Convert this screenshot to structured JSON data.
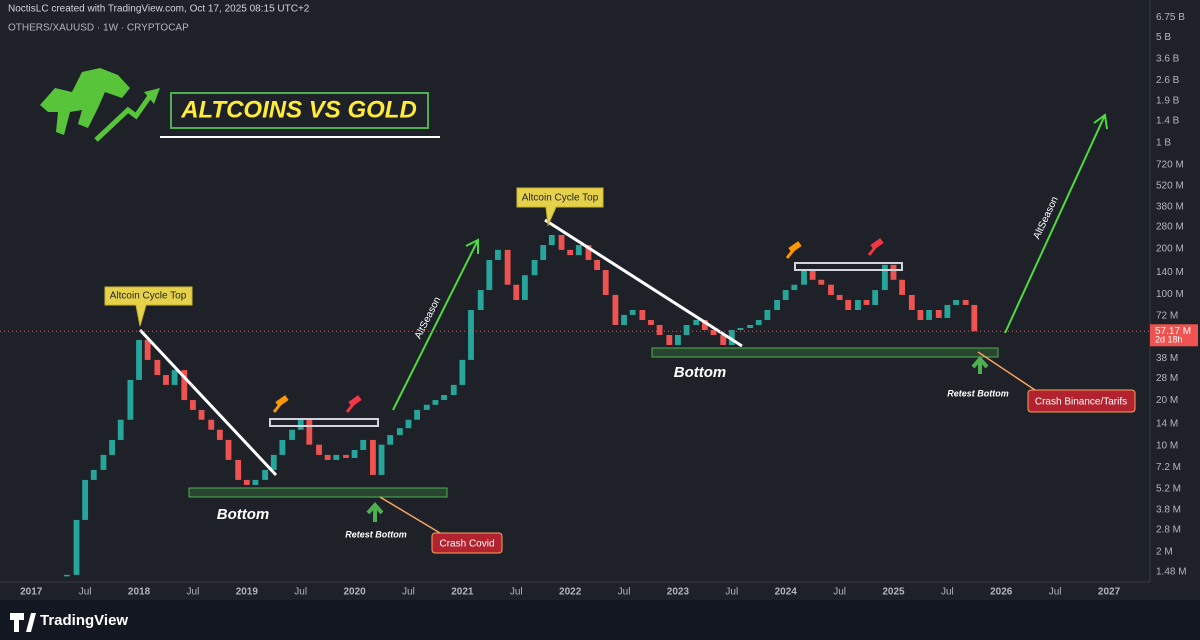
{
  "header": {
    "credit": "NoctisLC created with TradingView.com, Oct 17, 2025 08:15 UTC+2",
    "symbol": "OTHERS/XAUUSD · 1W · CRYPTOCAP"
  },
  "footer": {
    "brand": "TradingView"
  },
  "chart_data": {
    "type": "candlestick",
    "title": "ALTCOINS VS GOLD",
    "log_scale": true,
    "grid": false,
    "up_color": "#26a69a",
    "down_color": "#ef5350",
    "x": [
      2017.33,
      2017.42,
      2017.5,
      2017.58,
      2017.67,
      2017.75,
      2017.83,
      2017.92,
      2018,
      2018.08,
      2018.17,
      2018.25,
      2018.33,
      2018.42,
      2018.5,
      2018.58,
      2018.67,
      2018.75,
      2018.83,
      2018.92,
      2019,
      2019.08,
      2019.17,
      2019.25,
      2019.33,
      2019.42,
      2019.5,
      2019.58,
      2019.67,
      2019.75,
      2019.83,
      2019.92,
      2020,
      2020.08,
      2020.17,
      2020.25,
      2020.33,
      2020.42,
      2020.5,
      2020.58,
      2020.67,
      2020.75,
      2020.83,
      2020.92,
      2021,
      2021.08,
      2021.17,
      2021.25,
      2021.33,
      2021.42,
      2021.5,
      2021.58,
      2021.67,
      2021.75,
      2021.83,
      2021.92,
      2022,
      2022.08,
      2022.17,
      2022.25,
      2022.33,
      2022.42,
      2022.5,
      2022.58,
      2022.67,
      2022.75,
      2022.83,
      2022.92,
      2023,
      2023.08,
      2023.17,
      2023.25,
      2023.33,
      2023.42,
      2023.5,
      2023.58,
      2023.67,
      2023.75,
      2023.83,
      2023.92,
      2024,
      2024.08,
      2024.17,
      2024.25,
      2024.33,
      2024.42,
      2024.5,
      2024.58,
      2024.67,
      2024.75,
      2024.83,
      2024.92,
      2025,
      2025.08,
      2025.17,
      2025.25,
      2025.33,
      2025.42,
      2025.5,
      2025.58,
      2025.67,
      2025.75
    ],
    "values": [
      1410000,
      3250000,
      5970000,
      6950000,
      8730000,
      10960000,
      14900000,
      27300000,
      50100000,
      37000000,
      29400000,
      25300000,
      31700000,
      20100000,
      17300000,
      14900000,
      12800000,
      10960000,
      8090000,
      5970000,
      5530000,
      5970000,
      6950000,
      8730000,
      10960000,
      12800000,
      14900000,
      10200000,
      8730000,
      8090000,
      8730000,
      8340000,
      9410000,
      10960000,
      6440000,
      10200000,
      11800000,
      13100000,
      14900000,
      17300000,
      18700000,
      20100000,
      21700000,
      25300000,
      37000000,
      79000000,
      107000000,
      169000000,
      197000000,
      116000000,
      92000000,
      134000000,
      169000000,
      212000000,
      247000000,
      197000000,
      182000000,
      212000000,
      169000000,
      145000000,
      99300000,
      62900000,
      73300000,
      79000000,
      67900000,
      62900000,
      54000000,
      46400000,
      54000000,
      62900000,
      67900000,
      58300000,
      54000000,
      46400000,
      58300000,
      60100000,
      62900000,
      67900000,
      79000000,
      92000000,
      107000000,
      116000000,
      145000000,
      125000000,
      116000000,
      99300000,
      92000000,
      79000000,
      92000000,
      85300000,
      107000000,
      157000000,
      125000000,
      99300000,
      79000000,
      67900000,
      79000000,
      70000000,
      85300000,
      92000000,
      85300000,
      57170000
    ],
    "last_label": "57.17 M",
    "countdown": "2d 18h",
    "xlim": [
      2016.71,
      2027.38
    ],
    "xticks": [
      {
        "value": 2017,
        "label": "2017"
      },
      {
        "value": 2017.5,
        "label": "Jul"
      },
      {
        "value": 2018,
        "label": "2018"
      },
      {
        "value": 2018.5,
        "label": "Jul"
      },
      {
        "value": 2019,
        "label": "2019"
      },
      {
        "value": 2019.5,
        "label": "Jul"
      },
      {
        "value": 2020,
        "label": "2020"
      },
      {
        "value": 2020.5,
        "label": "Jul"
      },
      {
        "value": 2021,
        "label": "2021"
      },
      {
        "value": 2021.5,
        "label": "Jul"
      },
      {
        "value": 2022,
        "label": "2022"
      },
      {
        "value": 2022.5,
        "label": "Jul"
      },
      {
        "value": 2023,
        "label": "2023"
      },
      {
        "value": 2023.5,
        "label": "Jul"
      },
      {
        "value": 2024,
        "label": "2024"
      },
      {
        "value": 2024.5,
        "label": "Jul"
      },
      {
        "value": 2025,
        "label": "2025"
      },
      {
        "value": 2025.5,
        "label": "Jul"
      },
      {
        "value": 2026,
        "label": "2026"
      },
      {
        "value": 2026.5,
        "label": "Jul"
      },
      {
        "value": 2027,
        "label": "2027"
      }
    ],
    "ylim": [
      1265000,
      7550000000
    ],
    "yticks": [
      {
        "value": 6750000000,
        "label": "6.75 B"
      },
      {
        "value": 5000000000,
        "label": "5 B"
      },
      {
        "value": 3600000000,
        "label": "3.6 B"
      },
      {
        "value": 2600000000,
        "label": "2.6 B"
      },
      {
        "value": 1900000000,
        "label": "1.9 B"
      },
      {
        "value": 1400000000,
        "label": "1.4 B"
      },
      {
        "value": 1000000000,
        "label": "1 B"
      },
      {
        "value": 720000000,
        "label": "720 M"
      },
      {
        "value": 520000000,
        "label": "520 M"
      },
      {
        "value": 380000000,
        "label": "380 M"
      },
      {
        "value": 280000000,
        "label": "280 M"
      },
      {
        "value": 200000000,
        "label": "200 M"
      },
      {
        "value": 140000000,
        "label": "140 M"
      },
      {
        "value": 100000000,
        "label": "100 M"
      },
      {
        "value": 72000000,
        "label": "72 M"
      },
      {
        "value": 38000000,
        "label": "38 M"
      },
      {
        "value": 28000000,
        "label": "28 M"
      },
      {
        "value": 20000000,
        "label": "20 M"
      },
      {
        "value": 14000000,
        "label": "14 M"
      },
      {
        "value": 10000000,
        "label": "10 M"
      },
      {
        "value": 7200000,
        "label": "7.2 M"
      },
      {
        "value": 5200000,
        "label": "5.2 M"
      },
      {
        "value": 3800000,
        "label": "3.8 M"
      },
      {
        "value": 2800000,
        "label": "2.8 M"
      },
      {
        "value": 2000000,
        "label": "2 M"
      },
      {
        "value": 1480000,
        "label": "1.48 M"
      }
    ],
    "annotations": [
      "Altcoin Cycle Top",
      "Altcoin Cycle Top",
      "Bottom",
      "Bottom",
      "Retest Bottom",
      "Retest Bottom",
      "Crash Covid",
      "Crash Binance/Tarifs",
      "AltSeason",
      "AltSeason"
    ]
  }
}
